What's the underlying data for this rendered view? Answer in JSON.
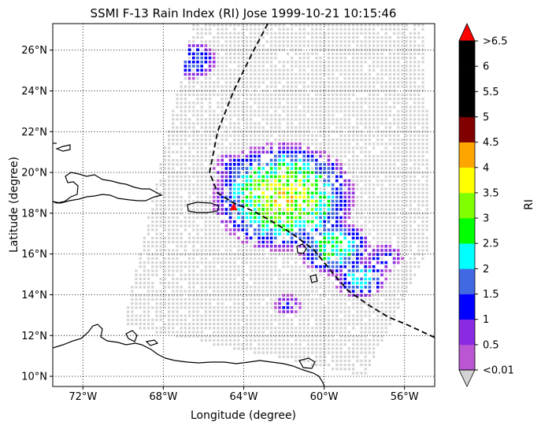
{
  "title": "SSMI F-13 Rain Index (RI) Jose 1999-10-21 10:15:46",
  "xlabel": "Longitude (degree)",
  "ylabel": "Latitude (degree)",
  "colorbar_label": "RI",
  "colors": {
    "swath": "#d3d3d3",
    "track": "#000000",
    "storm_marker": "#ff0000",
    "land_outline": "#000000",
    "grid": "#000000"
  },
  "chart_data": {
    "type": "heatmap",
    "title": "SSMI F-13 Rain Index (RI) Jose 1999-10-21 10:15:46",
    "xlabel": "Longitude (degree)",
    "ylabel": "Latitude (degree)",
    "xlim": [
      -73.5,
      -54.5
    ],
    "ylim": [
      9.5,
      27.3
    ],
    "grid": true,
    "x_ticks": [
      {
        "value": -72,
        "label": "72°W"
      },
      {
        "value": -68,
        "label": "68°W"
      },
      {
        "value": -64,
        "label": "64°W"
      },
      {
        "value": -60,
        "label": "60°W"
      },
      {
        "value": -56,
        "label": "56°W"
      }
    ],
    "y_ticks": [
      {
        "value": 10,
        "label": "10°N"
      },
      {
        "value": 12,
        "label": "12°N"
      },
      {
        "value": 14,
        "label": "14°N"
      },
      {
        "value": 16,
        "label": "16°N"
      },
      {
        "value": 18,
        "label": "18°N"
      },
      {
        "value": 20,
        "label": "20°N"
      },
      {
        "value": 22,
        "label": "22°N"
      },
      {
        "value": 24,
        "label": "24°N"
      },
      {
        "value": 26,
        "label": "26°N"
      }
    ],
    "colorbar": {
      "label": "RI",
      "extend": "both",
      "under_color": "#d3d3d3",
      "over_color": "#ff0000",
      "bins": [
        {
          "label": "0.5",
          "color": "#ba55d3"
        },
        {
          "label": "1",
          "color": "#8a2be2"
        },
        {
          "label": "1.5",
          "color": "#0000ff"
        },
        {
          "label": "2",
          "color": "#4169e1"
        },
        {
          "label": "2.5",
          "color": "#00ffff"
        },
        {
          "label": "3",
          "color": "#00ff00"
        },
        {
          "label": "3.5",
          "color": "#7fff00"
        },
        {
          "label": "4",
          "color": "#ffff00"
        },
        {
          "label": "4.5",
          "color": "#ffa500"
        },
        {
          "label": "5",
          "color": "#800000"
        },
        {
          "label": "5.5",
          "color": "#000000"
        },
        {
          "label": "6",
          "color": "#000000"
        },
        {
          "label": ">6.5",
          "color": "#000000"
        }
      ],
      "tick_labels": [
        "<0.01",
        "0.5",
        "1",
        "1.5",
        "2",
        "2.5",
        "3",
        "3.5",
        "4",
        "4.5",
        "5",
        "5.5",
        "6",
        ">6.5"
      ]
    },
    "storm_track": {
      "lon": [
        -62.8,
        -63.5,
        -64.5,
        -65.3,
        -65.7,
        -65.3,
        -64.5,
        -63.5,
        -62.6,
        -61.6,
        -60.5,
        -59.6,
        -58.8,
        -57.8,
        -56.8,
        -55.8,
        -54.5
      ],
      "lat": [
        27.3,
        26.0,
        24.0,
        22.0,
        20.0,
        19.0,
        18.5,
        18.1,
        17.6,
        17.0,
        16.2,
        15.1,
        14.2,
        13.5,
        12.9,
        12.5,
        11.9
      ]
    },
    "storm_center": {
      "lon": -64.5,
      "lat": 18.3
    },
    "swath_outline": {
      "lon": [
        -66.5,
        -55.0,
        -54.7,
        -58.0,
        -70.0
      ],
      "lat": [
        27.3,
        27.3,
        16.5,
        10.0,
        12.5
      ]
    },
    "rain_clusters": [
      {
        "lon": -62.0,
        "lat": 18.8,
        "radius": 3.6,
        "peak": 3.7
      },
      {
        "lon": -59.5,
        "lat": 16.3,
        "radius": 1.8,
        "peak": 2.9
      },
      {
        "lon": -58.2,
        "lat": 14.8,
        "radius": 1.3,
        "peak": 2.3
      },
      {
        "lon": -66.5,
        "lat": 25.5,
        "radius": 1.2,
        "peak": 1.6
      },
      {
        "lon": -64.5,
        "lat": 20.2,
        "radius": 1.0,
        "peak": 1.3
      },
      {
        "lon": -57.0,
        "lat": 15.8,
        "radius": 0.9,
        "peak": 1.2
      },
      {
        "lon": -61.8,
        "lat": 13.5,
        "radius": 0.7,
        "peak": 1.0
      }
    ]
  }
}
